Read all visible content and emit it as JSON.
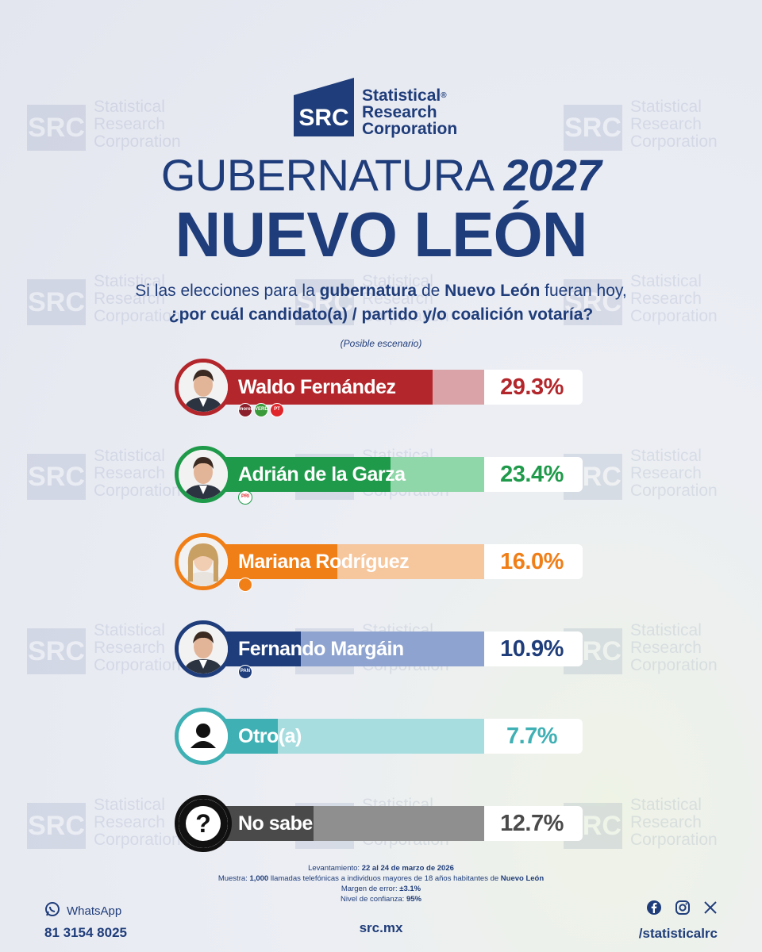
{
  "brand": {
    "mark": "SRC",
    "name_lines": [
      "Statistical",
      "Research",
      "Corporation"
    ],
    "registered": "®",
    "primary_color": "#1f3d7a"
  },
  "header": {
    "title_prefix": "GUBERNATURA",
    "title_year": "2027",
    "subtitle": "NUEVO LEÓN"
  },
  "question": {
    "line1_a": "Si las elecciones para la ",
    "line1_b": "gubernatura",
    "line1_c": " de ",
    "line1_d": "Nuevo León",
    "line1_e": " fueran hoy,",
    "line2": "¿por cuál candidato(a) / partido y/o coalición votaría?",
    "scenario": "(Posible escenario)"
  },
  "chart_data": {
    "type": "bar",
    "orientation": "horizontal",
    "categories": [
      "Waldo Fernández",
      "Adrián de la Garza",
      "Mariana Rodríguez",
      "Fernando Margáin",
      "Otro(a)",
      "No sabe"
    ],
    "values": [
      29.3,
      23.4,
      16.0,
      10.9,
      7.7,
      12.7
    ],
    "labels": [
      "29.3%",
      "23.4%",
      "16.0%",
      "10.9%",
      "7.7%",
      "12.7%"
    ],
    "colors": [
      "#b3262b",
      "#1e9a4a",
      "#f07f18",
      "#1f3d7a",
      "#3fb0b4",
      "#4a4a4a"
    ],
    "light_colors": [
      "#d9a3a8",
      "#8fd6a8",
      "#f6c69d",
      "#8ea3cf",
      "#a8dde0",
      "#8f8f8f"
    ],
    "parties": [
      [
        {
          "icon": "morena-icon",
          "label": "morena",
          "color": "#8b1f2b"
        },
        {
          "icon": "verde-icon",
          "label": "VERDE",
          "color": "#3a9a3a"
        },
        {
          "icon": "pt-icon",
          "label": "PT",
          "color": "#e0262b"
        }
      ],
      [
        {
          "icon": "pri-icon",
          "label": "PRI",
          "color": "#ffffff"
        }
      ],
      [
        {
          "icon": "mc-icon",
          "label": "",
          "color": "#f07f18"
        }
      ],
      [
        {
          "icon": "pan-icon",
          "label": "PAN",
          "color": "#1f3d7a"
        }
      ],
      [],
      []
    ],
    "xlim": [
      0,
      100
    ]
  },
  "methodology": {
    "l1_label": "Levantamiento: ",
    "l1_value": "22 al 24 de marzo de 2026",
    "l2_label": "Muestra: ",
    "l2_value_a": "1,000",
    "l2_mid": " llamadas telefónicas a individuos mayores de 18 años habitantes de ",
    "l2_value_b": "Nuevo León",
    "l3_label": "Margen de error: ",
    "l3_value": "±3.1%",
    "l4_label": "Nivel de confianza: ",
    "l4_value": "95%"
  },
  "footer": {
    "whatsapp_label": "WhatsApp",
    "phone": "81 3154 8025",
    "site": "src.mx",
    "social_handle": "/statisticalrc",
    "social_icons": [
      "facebook-icon",
      "instagram-icon",
      "x-icon"
    ]
  },
  "watermark": {
    "mark": "SRC",
    "text": "Statistical\nResearch\nCorporation"
  }
}
